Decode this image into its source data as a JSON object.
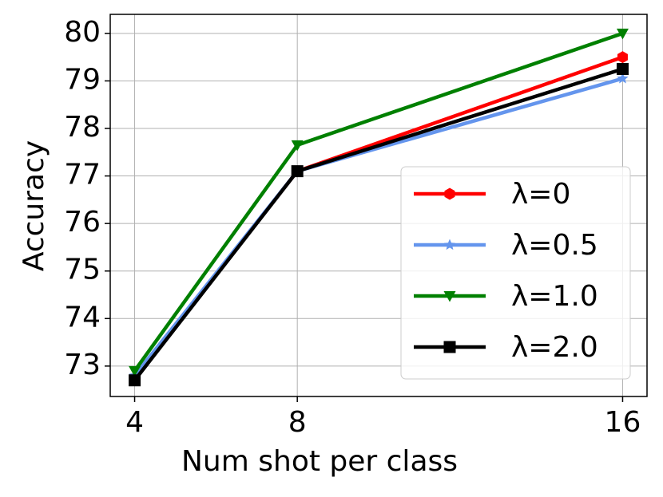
{
  "chart_data": {
    "type": "line",
    "x_label": "Num shot per class",
    "y_label": "Accuracy",
    "x": [
      4,
      8,
      16
    ],
    "series": [
      {
        "name": "λ=0",
        "color": "#ff0000",
        "marker": "hexagon",
        "values": [
          72.75,
          77.1,
          79.5
        ]
      },
      {
        "name": "λ=0.5",
        "color": "#6495ed",
        "marker": "star",
        "values": [
          72.8,
          77.1,
          79.05
        ]
      },
      {
        "name": "λ=1.0",
        "color": "#008000",
        "marker": "triangle-down",
        "values": [
          72.9,
          77.65,
          80.0
        ]
      },
      {
        "name": "λ=2.0",
        "color": "#000000",
        "marker": "square",
        "values": [
          72.7,
          77.1,
          79.25
        ]
      }
    ],
    "xlim": [
      3.4,
      16.6
    ],
    "xticks": [
      4,
      8,
      16
    ],
    "ylim": [
      72.36,
      80.4
    ],
    "yticks": [
      73,
      74,
      75,
      76,
      77,
      78,
      79,
      80
    ],
    "grid": true,
    "legend": "lower right"
  }
}
